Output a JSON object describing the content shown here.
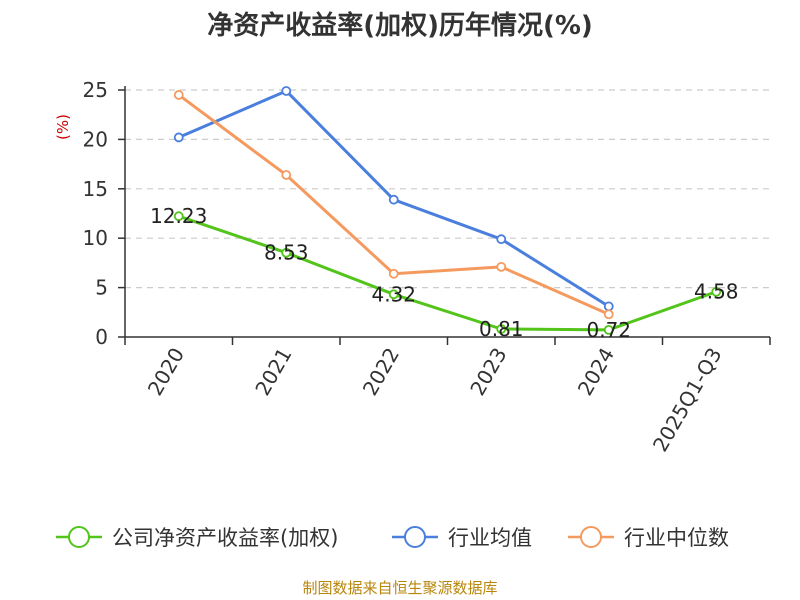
{
  "chart_data": {
    "type": "line",
    "title": "净资产收益率(加权)历年情况(%)",
    "ylabel": "(%)",
    "categories": [
      "2020",
      "2021",
      "2022",
      "2023",
      "2024",
      "2025Q1-Q3"
    ],
    "ylim": [
      0,
      25
    ],
    "yticks": [
      "0",
      "5",
      "10",
      "15",
      "20",
      "25"
    ],
    "grid": "horizontal-dashed",
    "legend_position": "bottom",
    "series": [
      {
        "name": "公司净资产收益率(加权)",
        "color": "#52c41a",
        "values": [
          12.23,
          8.53,
          4.32,
          0.81,
          0.72,
          4.58
        ],
        "labels": [
          "12.23",
          "8.53",
          "4.32",
          "0.81",
          "0.72",
          "4.58"
        ]
      },
      {
        "name": "行业均值",
        "color": "#4a7fdd",
        "values": [
          20.2,
          24.9,
          13.9,
          9.9,
          3.1,
          null
        ]
      },
      {
        "name": "行业中位数",
        "color": "#f59a5f",
        "values": [
          24.5,
          16.4,
          6.4,
          7.1,
          2.3,
          null
        ]
      }
    ]
  },
  "source": "制图数据来自恒生聚源数据库"
}
